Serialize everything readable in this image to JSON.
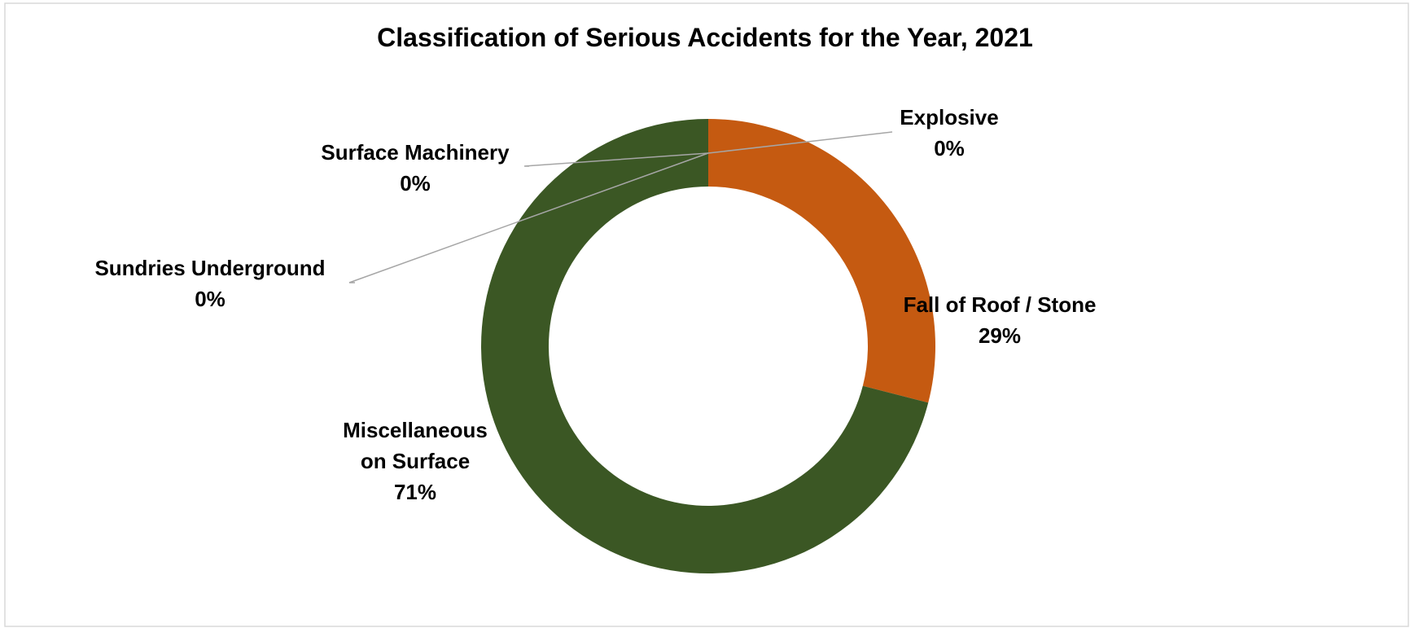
{
  "chart_data": {
    "type": "donut",
    "title": "Classification of Serious Accidents for the Year, 2021",
    "categories": [
      "Explosive",
      "Fall of Roof / Stone",
      "Miscellaneous on Surface",
      "Sundries Underground",
      "Surface Machinery"
    ],
    "values": [
      0,
      29,
      71,
      0,
      0
    ],
    "value_labels": [
      "0%",
      "29%",
      "71%",
      "0%",
      "0%"
    ],
    "colors": [
      "#4472c4",
      "#c55a11",
      "#3b5724",
      "#a5a5a5",
      "#ffc000"
    ]
  }
}
